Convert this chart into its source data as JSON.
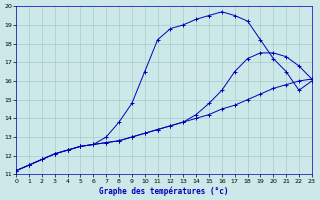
{
  "xlabel": "Graphe des températures (°c)",
  "bg_color": "#cce8e8",
  "grid_color": "#aacccc",
  "line_color": "#0000bb",
  "xmin": 0,
  "xmax": 23,
  "ymin": 11,
  "ymax": 20,
  "line1_x": [
    0,
    1,
    2,
    3,
    4,
    5,
    6,
    7,
    8,
    9,
    10,
    11,
    12,
    13,
    14,
    15,
    16,
    17,
    18,
    19,
    20,
    21,
    22,
    23
  ],
  "line1_y": [
    11.2,
    11.5,
    11.8,
    12.1,
    12.3,
    12.5,
    12.6,
    12.7,
    12.8,
    13.0,
    13.2,
    13.4,
    13.6,
    13.8,
    14.0,
    14.2,
    14.5,
    14.7,
    15.0,
    15.3,
    15.6,
    15.8,
    16.0,
    16.1
  ],
  "line2_x": [
    0,
    1,
    2,
    3,
    4,
    5,
    6,
    7,
    8,
    9,
    10,
    11,
    12,
    13,
    14,
    15,
    16,
    17,
    18,
    19,
    20,
    21,
    22,
    23
  ],
  "line2_y": [
    11.2,
    11.5,
    11.8,
    12.1,
    12.3,
    12.5,
    12.6,
    12.7,
    12.8,
    13.0,
    13.2,
    13.4,
    13.6,
    13.8,
    14.2,
    14.8,
    15.5,
    16.5,
    17.2,
    17.5,
    17.5,
    17.3,
    16.8,
    16.1
  ],
  "line3_x": [
    0,
    1,
    2,
    3,
    4,
    5,
    6,
    7,
    8,
    9,
    10,
    11,
    12,
    13,
    14,
    15,
    16,
    17,
    18,
    19,
    20,
    21,
    22,
    23
  ],
  "line3_y": [
    11.2,
    11.5,
    11.8,
    12.1,
    12.3,
    12.5,
    12.6,
    13.0,
    13.8,
    14.8,
    16.5,
    18.2,
    18.8,
    19.0,
    19.3,
    19.5,
    19.7,
    19.5,
    19.2,
    18.2,
    17.2,
    16.5,
    15.5,
    16.0
  ]
}
